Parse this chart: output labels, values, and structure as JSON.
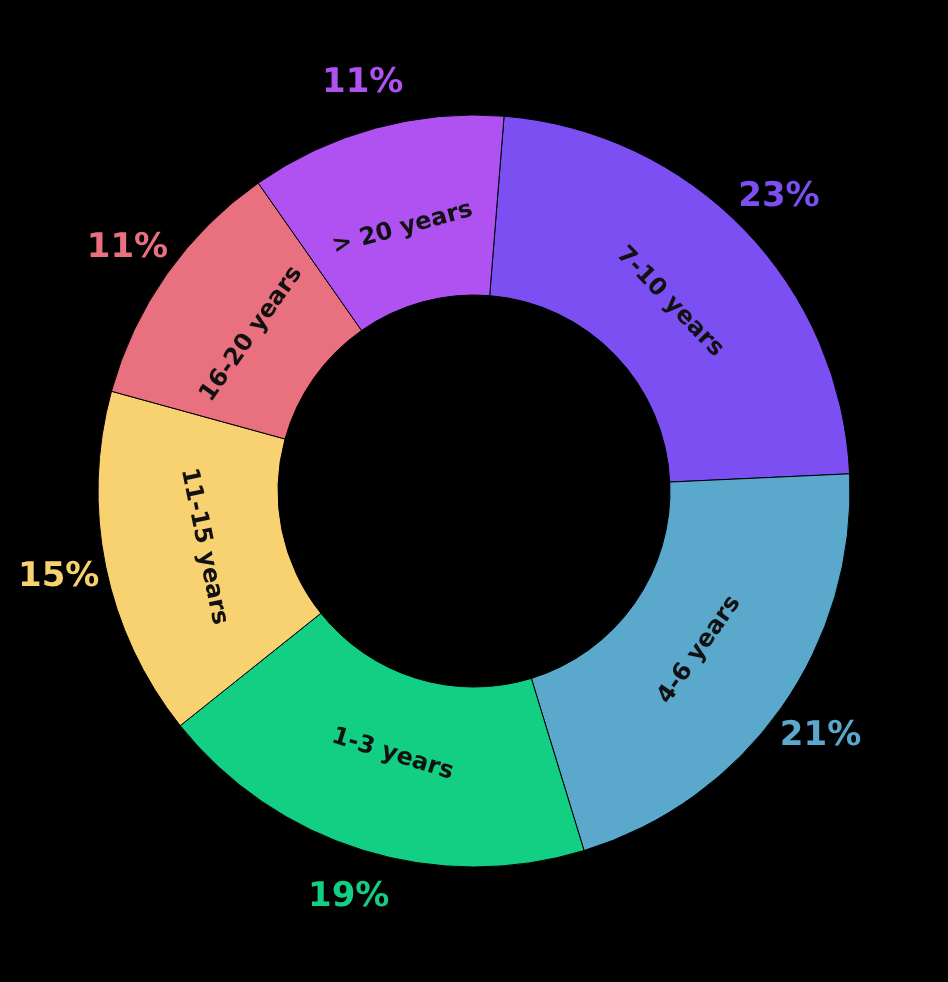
{
  "chart_data": {
    "type": "donut",
    "categories": [
      "7-10 years",
      "4-6 years",
      "1-3 years",
      "11-15 years",
      "16-20 years",
      "> 20 years"
    ],
    "values": [
      23,
      21,
      19,
      15,
      11,
      11
    ],
    "value_labels": [
      "23%",
      "21%",
      "19%",
      "15%",
      "11%",
      "11%"
    ],
    "colors": [
      "#7b4ff2",
      "#5aa8cc",
      "#12cf83",
      "#f8d170",
      "#e8707f",
      "#b052f2"
    ]
  }
}
